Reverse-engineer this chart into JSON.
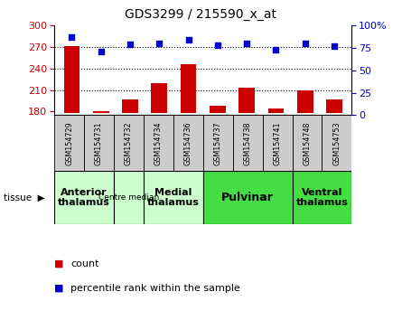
{
  "title": "GDS3299 / 215590_x_at",
  "samples": [
    "GSM154729",
    "GSM154731",
    "GSM154732",
    "GSM154734",
    "GSM154736",
    "GSM154737",
    "GSM154738",
    "GSM154741",
    "GSM154748",
    "GSM154753"
  ],
  "counts": [
    272,
    180,
    197,
    220,
    246,
    188,
    213,
    185,
    210,
    197
  ],
  "percentiles": [
    87,
    71,
    79,
    80,
    84,
    78,
    80,
    73,
    80,
    77
  ],
  "ylim_left": [
    175,
    300
  ],
  "ylim_right": [
    0,
    100
  ],
  "yticks_left": [
    180,
    210,
    240,
    270,
    300
  ],
  "yticks_right": [
    0,
    25,
    50,
    75,
    100
  ],
  "bar_color": "#cc0000",
  "dot_color": "#0000cc",
  "bar_baseline": 178,
  "grid_dotted_at": [
    210,
    240,
    270
  ],
  "bg_color": "#ffffff",
  "tick_label_color_left": "#cc0000",
  "tick_label_color_right": "#0000cc",
  "group_configs": [
    {
      "label": "Anterior\nthalamus",
      "start": 0,
      "end": 2,
      "color": "#ccffcc",
      "fontsize": 8,
      "bold": true
    },
    {
      "label": "Centre median",
      "start": 2,
      "end": 3,
      "color": "#ccffcc",
      "fontsize": 6.5,
      "bold": false
    },
    {
      "label": "Medial\nthalamus",
      "start": 3,
      "end": 5,
      "color": "#ccffcc",
      "fontsize": 8,
      "bold": true
    },
    {
      "label": "Pulvinar",
      "start": 5,
      "end": 8,
      "color": "#44dd44",
      "fontsize": 9,
      "bold": true
    },
    {
      "label": "Ventral\nthalamus",
      "start": 8,
      "end": 10,
      "color": "#44dd44",
      "fontsize": 8,
      "bold": true
    }
  ],
  "xticklabel_bg": "#dddddd",
  "n": 10
}
